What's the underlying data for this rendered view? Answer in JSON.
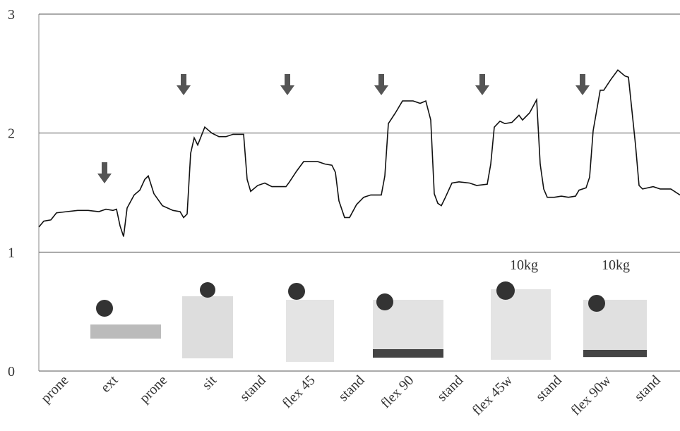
{
  "chart_data": {
    "type": "line",
    "categories": [
      "prone",
      "ext",
      "prone",
      "sit",
      "stand",
      "flex 45",
      "stand",
      "flex 90",
      "stand",
      "flex 45w",
      "stand",
      "flex 90w",
      "stand"
    ],
    "annotations": [
      "10kg",
      "10kg"
    ],
    "x": [
      0,
      7,
      17,
      25,
      40,
      55,
      70,
      85,
      95,
      105,
      110,
      115,
      120,
      125,
      135,
      143,
      150,
      155,
      163,
      175,
      190,
      200,
      205,
      210,
      215,
      220,
      225,
      235,
      245,
      255,
      265,
      275,
      290,
      295,
      300,
      310,
      320,
      330,
      340,
      350,
      355,
      365,
      375,
      395,
      405,
      415,
      420,
      425,
      433,
      440,
      450,
      460,
      470,
      480,
      485,
      490,
      495,
      505,
      515,
      530,
      540,
      548,
      555,
      560,
      565,
      570,
      575,
      585,
      595,
      610,
      620,
      635,
      640,
      645,
      653,
      660,
      670,
      680,
      685,
      695,
      705,
      710,
      715,
      720,
      730,
      740,
      750,
      760,
      765,
      775,
      780,
      785,
      795,
      800,
      810,
      820,
      830,
      835,
      845,
      850,
      855,
      870,
      880,
      895,
      908
    ],
    "values": [
      1.21,
      1.26,
      1.27,
      1.33,
      1.34,
      1.35,
      1.35,
      1.34,
      1.36,
      1.35,
      1.36,
      1.22,
      1.13,
      1.37,
      1.48,
      1.52,
      1.61,
      1.64,
      1.49,
      1.39,
      1.35,
      1.34,
      1.29,
      1.32,
      1.83,
      1.96,
      1.9,
      2.05,
      2.0,
      1.97,
      1.97,
      1.99,
      1.99,
      1.61,
      1.51,
      1.56,
      1.58,
      1.55,
      1.55,
      1.55,
      1.59,
      1.68,
      1.76,
      1.76,
      1.74,
      1.73,
      1.67,
      1.43,
      1.29,
      1.29,
      1.4,
      1.46,
      1.48,
      1.48,
      1.48,
      1.64,
      2.08,
      2.17,
      2.27,
      2.27,
      2.25,
      2.27,
      2.11,
      1.49,
      1.41,
      1.39,
      1.45,
      1.58,
      1.59,
      1.58,
      1.56,
      1.57,
      1.74,
      2.05,
      2.1,
      2.08,
      2.09,
      2.15,
      2.11,
      2.17,
      2.28,
      1.74,
      1.53,
      1.46,
      1.46,
      1.47,
      1.46,
      1.47,
      1.52,
      1.54,
      1.63,
      2.02,
      2.36,
      2.36,
      2.45,
      2.53,
      2.48,
      2.47,
      1.9,
      1.56,
      1.53,
      1.55,
      1.53,
      1.53,
      1.48
    ],
    "color": "#111111",
    "xlim": [
      0,
      908
    ],
    "ylim": [
      0,
      3
    ],
    "yticks": [
      0,
      1,
      2,
      3
    ],
    "grid": true
  }
}
